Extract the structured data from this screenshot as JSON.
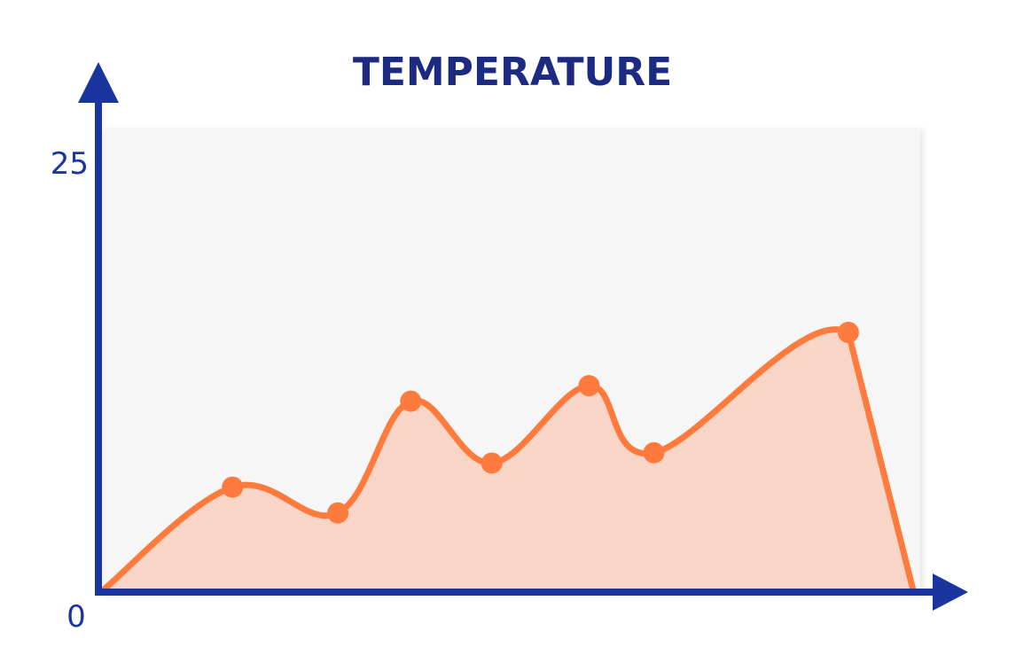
{
  "colors": {
    "axis": "#1a35a0",
    "line": "#ff7a3d",
    "fill": "#f9d5c7",
    "plot_bg": "#f6f6f7",
    "title": "#1c2a82"
  },
  "chart_data": {
    "type": "area",
    "title": "TEMPERATURE",
    "xlabel": "",
    "ylabel": "",
    "ylim": [
      0,
      25
    ],
    "y_ticks": [
      {
        "value": 0,
        "label": "0"
      },
      {
        "value": 25,
        "label": "25"
      }
    ],
    "xlim": [
      0,
      10
    ],
    "x": [
      0,
      1.6,
      2.9,
      3.8,
      4.8,
      6.0,
      6.8,
      9.2,
      10.0
    ],
    "values": [
      0,
      6.0,
      4.5,
      11.0,
      7.4,
      11.9,
      8.0,
      15.0,
      0
    ],
    "markers": [
      false,
      true,
      true,
      true,
      true,
      true,
      true,
      true,
      false
    ],
    "grid": false,
    "legend": "none"
  }
}
